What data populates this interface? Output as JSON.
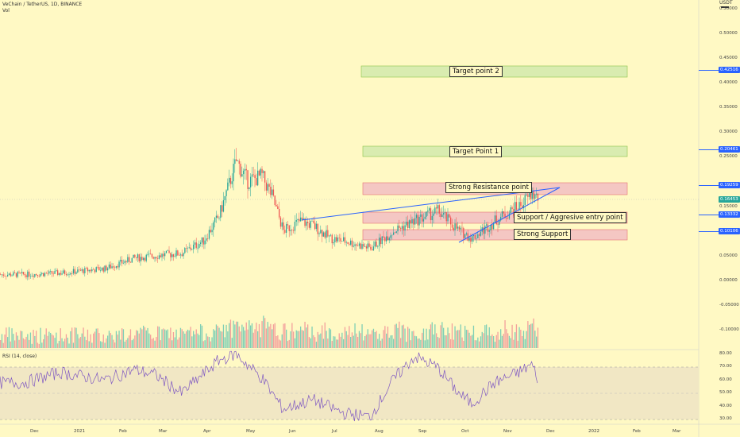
{
  "header": {
    "symbol_line": "VeChain / TetherUS, 1D, BINANCE",
    "vol_label": "Vol",
    "rsi_label": "RSI (14, close)",
    "currency": "USDT"
  },
  "colors": {
    "background": "#fff9c4",
    "candle_up": "#26a69a",
    "candle_down": "#ef5350",
    "trendline": "#2962ff",
    "rsi_line": "#7e57c2",
    "resistance_zone": "#f4c7c3",
    "target_zone": "#d9ecb0",
    "price_box": "#2962ff"
  },
  "price_axis": {
    "ticks": [
      "0.50000",
      "0.45000",
      "0.40000",
      "0.35000",
      "0.30000",
      "0.25000",
      "0.20000",
      "0.15000",
      "0.10000",
      "0.05000",
      "0.00000",
      "-0.05000",
      "-0.10000"
    ],
    "markers": [
      {
        "label": "0.42516",
        "value": 0.42516
      },
      {
        "label": "0.20461",
        "value": 0.20461
      },
      {
        "label": "0.19259",
        "value": 0.19259
      },
      {
        "label": "0.16453",
        "value": 0.16453
      },
      {
        "label": "0.13332",
        "value": 0.13332
      },
      {
        "label": "0.10106",
        "value": 0.10106
      }
    ]
  },
  "rsi_axis": {
    "ticks": [
      "80.00",
      "70.00",
      "60.00",
      "50.00",
      "40.00",
      "30.00"
    ]
  },
  "time_axis": {
    "ticks": [
      "Dec",
      "2021",
      "Feb",
      "Mar",
      "Apr",
      "May",
      "Jun",
      "Jul",
      "Aug",
      "Sep",
      "Oct",
      "Nov",
      "Dec",
      "2022",
      "Feb",
      "Mar"
    ]
  },
  "zones": {
    "target_2": "Target point 2",
    "target_1": "Target Point 1",
    "resistance": "Strong Resistance point",
    "support_entry": "Support / Aggresive entry point",
    "strong_support": "Strong Support"
  },
  "chart_data": [
    {
      "type": "line",
      "title": "VeChain / TetherUS, 1D, BINANCE",
      "series": [
        {
          "name": "VeChain / TetherUS",
          "x": [
            "2020-11-20",
            "2020-12-15",
            "2021-01-15",
            "2021-02-05",
            "2021-02-20",
            "2021-03-10",
            "2021-03-25",
            "2021-04-05",
            "2021-04-17",
            "2021-04-25",
            "2021-05-05",
            "2021-05-12",
            "2021-05-20",
            "2021-06-01",
            "2021-06-10",
            "2021-06-22",
            "2021-07-01",
            "2021-07-20",
            "2021-08-05",
            "2021-08-20",
            "2021-09-05",
            "2021-09-20",
            "2021-09-29",
            "2021-10-15",
            "2021-11-01",
            "2021-11-10",
            "2021-11-14"
          ],
          "values": [
            0.012,
            0.015,
            0.024,
            0.045,
            0.05,
            0.055,
            0.08,
            0.13,
            0.24,
            0.2,
            0.21,
            0.17,
            0.1,
            0.12,
            0.11,
            0.085,
            0.08,
            0.065,
            0.1,
            0.12,
            0.14,
            0.1,
            0.085,
            0.12,
            0.15,
            0.175,
            0.165
          ]
        }
      ],
      "ylim": [
        -0.12,
        0.55
      ]
    },
    {
      "type": "line",
      "title": "RSI (14, close)",
      "series": [
        {
          "name": "RSI (14, close)",
          "x": [
            "2020-11-20",
            "2020-12-15",
            "2021-01-15",
            "2021-02-05",
            "2021-02-20",
            "2021-03-10",
            "2021-04-05",
            "2021-04-17",
            "2021-05-05",
            "2021-05-20",
            "2021-06-10",
            "2021-07-01",
            "2021-07-20",
            "2021-08-05",
            "2021-08-20",
            "2021-09-05",
            "2021-09-20",
            "2021-09-29",
            "2021-10-15",
            "2021-11-01",
            "2021-11-10",
            "2021-11-14"
          ],
          "values": [
            58,
            66,
            60,
            68,
            64,
            50,
            75,
            80,
            62,
            38,
            45,
            35,
            32,
            60,
            78,
            70,
            50,
            42,
            58,
            66,
            72,
            62
          ]
        }
      ],
      "ylim": [
        27,
        82
      ]
    }
  ]
}
